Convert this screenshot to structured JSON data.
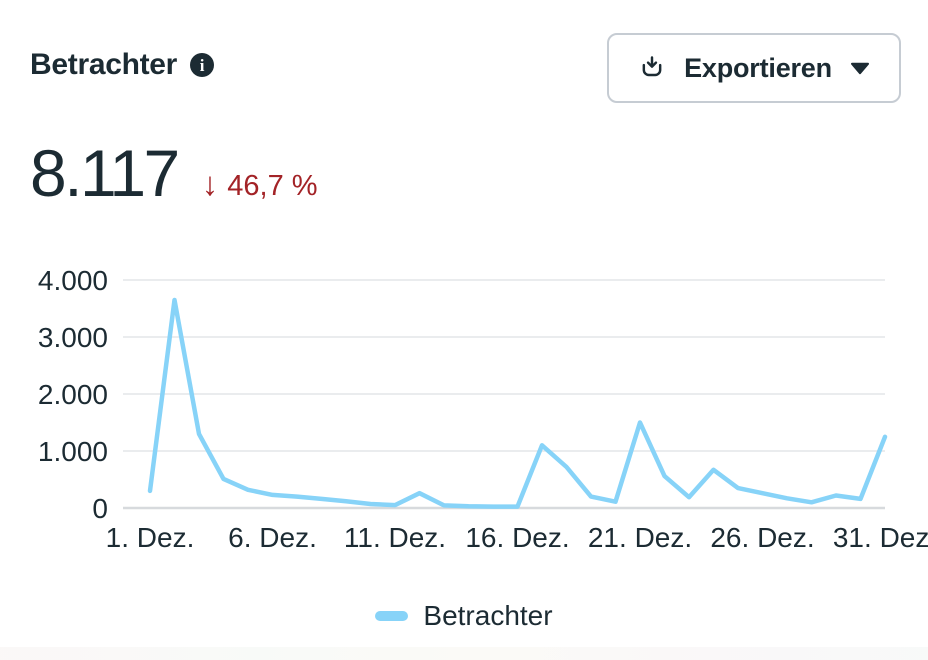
{
  "header": {
    "title": "Betrachter",
    "info_glyph": "i"
  },
  "export_button": {
    "label": "Exportieren"
  },
  "metric": {
    "value": "8.117",
    "delta_arrow": "↓",
    "delta": "46,7 %",
    "delta_direction": "down"
  },
  "legend": {
    "items": [
      {
        "label": "Betrachter",
        "color": "#87d3f8"
      }
    ]
  },
  "colors": {
    "text": "#1c2b33",
    "negative": "#a32327",
    "line": "#87d3f8",
    "gridline": "#e4e6e9",
    "axis_line": "#d7dadd",
    "button_border": "#c6ccd3"
  },
  "chart_data": {
    "type": "line",
    "title": "Betrachter",
    "xlabel": "",
    "ylabel": "",
    "x": [
      1,
      2,
      3,
      4,
      5,
      6,
      7,
      8,
      9,
      10,
      11,
      12,
      13,
      14,
      15,
      16,
      17,
      18,
      19,
      20,
      21,
      22,
      23,
      24,
      25,
      26,
      27,
      28,
      29,
      30,
      31
    ],
    "categories": [
      "1. Dez.",
      "2. Dez.",
      "3. Dez.",
      "4. Dez.",
      "5. Dez.",
      "6. Dez.",
      "7. Dez.",
      "8. Dez.",
      "9. Dez.",
      "10. Dez.",
      "11. Dez.",
      "12. Dez.",
      "13. Dez.",
      "14. Dez.",
      "15. Dez.",
      "16. Dez.",
      "17. Dez.",
      "18. Dez.",
      "19. Dez.",
      "20. Dez.",
      "21. Dez.",
      "22. Dez.",
      "23. Dez.",
      "24. Dez.",
      "25. Dez.",
      "26. Dez.",
      "27. Dez.",
      "28. Dez.",
      "29. Dez.",
      "30. Dez.",
      "31. Dez."
    ],
    "series": [
      {
        "name": "Betrachter",
        "color": "#87d3f8",
        "values": [
          300,
          3650,
          1300,
          510,
          320,
          230,
          200,
          160,
          120,
          70,
          50,
          260,
          45,
          30,
          25,
          25,
          1100,
          720,
          200,
          110,
          1500,
          560,
          190,
          670,
          350,
          260,
          170,
          100,
          220,
          160,
          1250
        ]
      }
    ],
    "x_tick_days": [
      1,
      6,
      11,
      16,
      21,
      26,
      31
    ],
    "x_tick_labels": [
      "1. Dez.",
      "6. Dez.",
      "11. Dez.",
      "16. Dez.",
      "21. Dez.",
      "26. Dez.",
      "31. Dez."
    ],
    "y_ticks": [
      0,
      1000,
      2000,
      3000,
      4000
    ],
    "y_tick_labels": [
      "0",
      "1.000",
      "2.000",
      "3.000",
      "4.000"
    ],
    "ylim": [
      0,
      4000
    ],
    "grid": "horizontal",
    "legend_position": "bottom"
  }
}
